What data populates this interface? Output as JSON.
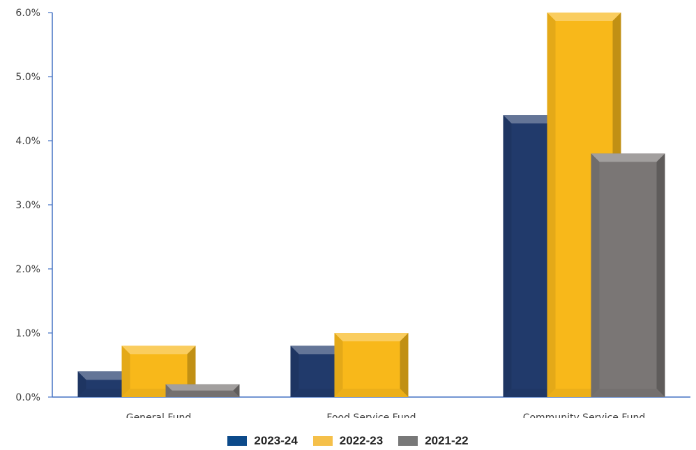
{
  "chart_data": {
    "type": "bar",
    "title": "",
    "xlabel": "",
    "ylabel": "",
    "categories": [
      "General Fund",
      "Food Service Fund",
      "Community Service Fund"
    ],
    "series": [
      {
        "name": "2023-24",
        "values": [
          0.4,
          0.8,
          4.4
        ],
        "color": "#213a6b",
        "legend_color": "#0c4a8a"
      },
      {
        "name": "2022-23",
        "values": [
          0.8,
          1.0,
          6.0
        ],
        "color": "#f8b81a",
        "legend_color": "#f5c04a"
      },
      {
        "name": "2021-22",
        "values": [
          0.2,
          0.0,
          3.8
        ],
        "color": "#7a7675",
        "legend_color": "#787878"
      }
    ],
    "ylim": [
      0,
      6
    ],
    "yticks": [
      0,
      1,
      2,
      3,
      4,
      5,
      6
    ],
    "ytick_labels": [
      "0.0%",
      "1.0%",
      "2.0%",
      "3.0%",
      "4.0%",
      "5.0%",
      "6.0%"
    ],
    "grid": false,
    "legend_position": "bottom",
    "style": "3d-bevel-bars"
  }
}
